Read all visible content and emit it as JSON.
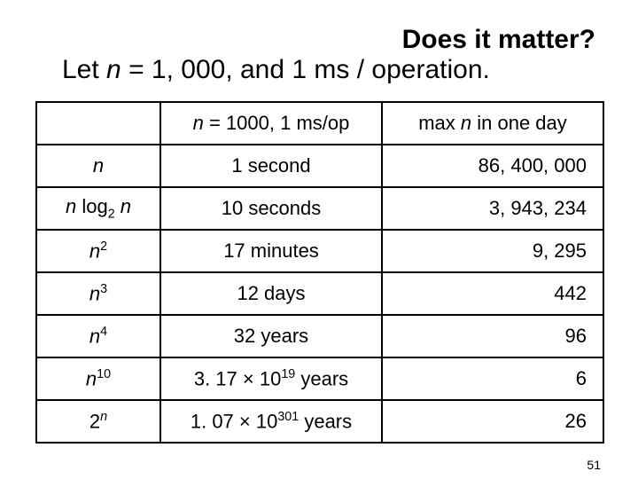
{
  "heading": {
    "title": "Does it matter?",
    "subtitle_prefix": "Let ",
    "subtitle_var": "n",
    "subtitle_rest": " = 1, 000, and 1 ms / operation."
  },
  "table": {
    "header_col2_prefix": "",
    "header_col2_var": "n",
    "header_col2_rest": " = 1000, 1 ms/op",
    "header_col3_prefix": "max ",
    "header_col3_var": "n",
    "header_col3_rest": " in one day",
    "rows": [
      {
        "func_html": "n",
        "time": "1 second",
        "maxn": "86, 400, 000"
      },
      {
        "func_html": "nlog2n",
        "time": "10 seconds",
        "maxn": "3, 943, 234"
      },
      {
        "func_html": "n2",
        "time": "17 minutes",
        "maxn": "9, 295"
      },
      {
        "func_html": "n3",
        "time": "12 days",
        "maxn": "442"
      },
      {
        "func_html": "n4",
        "time": "32 years",
        "maxn": "96"
      },
      {
        "func_html": "n10",
        "time_prefix": "3. 17 ",
        "time_mult": "×",
        "time_base": " 10",
        "time_exp": "19",
        "time_suffix": " years",
        "maxn": "6"
      },
      {
        "func_html": "2n",
        "time_prefix": "1. 07 ",
        "time_mult": "×",
        "time_base": " 10",
        "time_exp": "301",
        "time_suffix": " years",
        "maxn": "26"
      }
    ]
  },
  "page_number": "51",
  "colors": {
    "background": "#ffffff",
    "text": "#000000",
    "border": "#000000"
  }
}
